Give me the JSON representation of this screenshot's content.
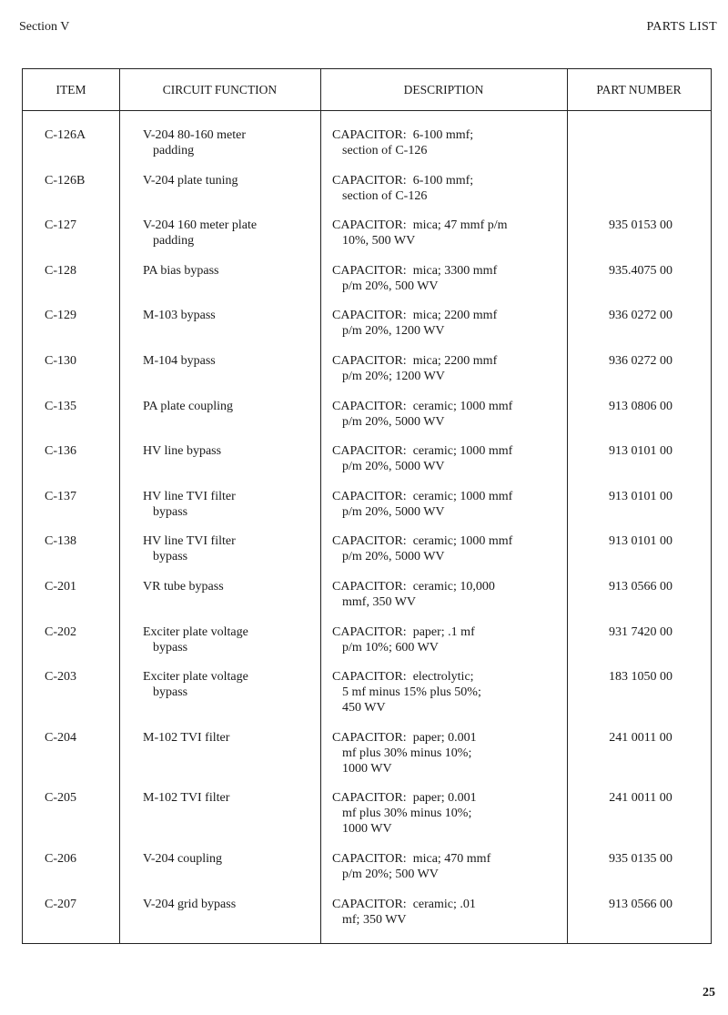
{
  "header": {
    "section": "Section V",
    "title": "PARTS LIST"
  },
  "columns": [
    "ITEM",
    "CIRCUIT FUNCTION",
    "DESCRIPTION",
    "PART NUMBER"
  ],
  "rows": [
    {
      "item": "C-126A",
      "function": [
        "V-204 80-160 meter",
        "padding"
      ],
      "description": [
        "CAPACITOR:  6-100 mmf;",
        "section of C-126"
      ],
      "part": ""
    },
    {
      "item": "C-126B",
      "function": [
        "V-204 plate tuning"
      ],
      "description": [
        "CAPACITOR:  6-100 mmf;",
        "section of C-126"
      ],
      "part": ""
    },
    {
      "item": "C-127",
      "function": [
        "V-204 160 meter plate",
        "padding"
      ],
      "description": [
        "CAPACITOR:  mica; 47 mmf p/m",
        "10%, 500 WV"
      ],
      "part": "935 0153 00"
    },
    {
      "item": "C-128",
      "function": [
        "PA bias bypass"
      ],
      "description": [
        "CAPACITOR:  mica; 3300 mmf",
        "p/m 20%, 500 WV"
      ],
      "part": "935.4075 00"
    },
    {
      "item": "C-129",
      "function": [
        "M-103 bypass"
      ],
      "description": [
        "CAPACITOR:  mica; 2200 mmf",
        "p/m 20%, 1200 WV"
      ],
      "part": "936 0272 00"
    },
    {
      "item": "C-130",
      "function": [
        "M-104 bypass"
      ],
      "description": [
        "CAPACITOR:  mica; 2200 mmf",
        "p/m 20%; 1200 WV"
      ],
      "part": "936 0272 00"
    },
    {
      "item": "C-135",
      "function": [
        "PA plate coupling"
      ],
      "description": [
        "CAPACITOR:  ceramic; 1000 mmf",
        "p/m 20%, 5000 WV"
      ],
      "part": "913 0806 00"
    },
    {
      "item": "C-136",
      "function": [
        "HV line bypass"
      ],
      "description": [
        "CAPACITOR:  ceramic; 1000 mmf",
        "p/m 20%, 5000 WV"
      ],
      "part": "913 0101 00"
    },
    {
      "item": "C-137",
      "function": [
        "HV line TVI filter",
        "bypass"
      ],
      "description": [
        "CAPACITOR:  ceramic; 1000 mmf",
        "p/m 20%, 5000 WV"
      ],
      "part": "913 0101 00"
    },
    {
      "item": "C-138",
      "function": [
        "HV line TVI filter",
        "bypass"
      ],
      "description": [
        "CAPACITOR:  ceramic; 1000 mmf",
        "p/m 20%, 5000 WV"
      ],
      "part": "913 0101 00"
    },
    {
      "item": "C-201",
      "function": [
        "VR tube bypass"
      ],
      "description": [
        "CAPACITOR:  ceramic; 10,000",
        "mmf, 350 WV"
      ],
      "part": "913 0566 00"
    },
    {
      "item": "C-202",
      "function": [
        "Exciter plate voltage",
        "bypass"
      ],
      "description": [
        "CAPACITOR:  paper; .1 mf",
        "p/m 10%; 600 WV"
      ],
      "part": "931 7420 00"
    },
    {
      "item": "C-203",
      "function": [
        "Exciter plate voltage",
        "bypass"
      ],
      "description": [
        "CAPACITOR:  electrolytic;",
        "5 mf minus 15% plus 50%;",
        "450 WV"
      ],
      "part": "183 1050 00"
    },
    {
      "item": "C-204",
      "function": [
        "M-102 TVI filter"
      ],
      "description": [
        "CAPACITOR:  paper; 0.001",
        "mf plus 30% minus 10%;",
        "1000 WV"
      ],
      "part": "241 0011 00"
    },
    {
      "item": "C-205",
      "function": [
        "M-102 TVI filter"
      ],
      "description": [
        "CAPACITOR:  paper; 0.001",
        "mf plus 30% minus 10%;",
        "1000 WV"
      ],
      "part": "241 0011 00"
    },
    {
      "item": "C-206",
      "function": [
        "V-204 coupling"
      ],
      "description": [
        "CAPACITOR:  mica; 470 mmf",
        "p/m 20%; 500 WV"
      ],
      "part": "935 0135 00"
    },
    {
      "item": "C-207",
      "function": [
        "V-204 grid bypass"
      ],
      "description": [
        "CAPACITOR:  ceramic; .01",
        "mf; 350 WV"
      ],
      "part": "913 0566 00"
    }
  ],
  "page_number": "25"
}
